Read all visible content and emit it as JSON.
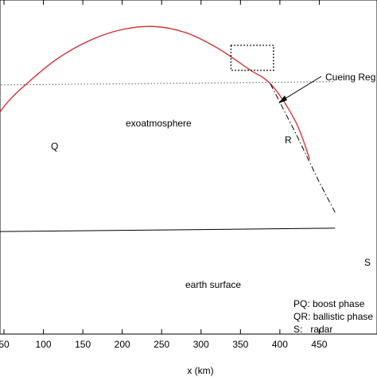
{
  "chart_data": {
    "type": "line",
    "xlabel": "x (km)",
    "ylabel": "",
    "title": "",
    "xlim": [
      -10,
      470
    ],
    "x_ticks": [
      50,
      100,
      150,
      200,
      250,
      300,
      350,
      400,
      450
    ],
    "grid": false,
    "series": [
      {
        "name": "",
        "style": "solid",
        "color": "#d62728",
        "x": [
          -5,
          20,
          50,
          84,
          120,
          160,
          200,
          240,
          280,
          320,
          360,
          390,
          420,
          438
        ],
        "y": [
          -0.65,
          -0.1,
          0.4,
          0.75,
          1.05,
          1.28,
          1.42,
          1.46,
          1.38,
          1.18,
          0.9,
          0.68,
          0.2,
          -0.3
        ]
      },
      {
        "name": "",
        "style": "dash-dot",
        "color": "#000000",
        "x": [
          388,
          420,
          450,
          470
        ],
        "y": [
          0.7,
          0.05,
          -0.6,
          -1.0
        ]
      },
      {
        "name": "",
        "style": "dotted",
        "color": "#000000",
        "x": [
          -10,
          470
        ],
        "y": [
          0.68,
          0.73
        ]
      },
      {
        "name": "",
        "style": "solid",
        "color": "#000000",
        "x": [
          -10,
          470
        ],
        "y": [
          -1.26,
          -1.21
        ]
      }
    ],
    "annotations": {
      "exoatmosphere": "exoatmosphere",
      "earth_surface": "earth surface",
      "Q": "Q",
      "R": "R",
      "S": "S",
      "cueing_region": "Cueing Reg"
    },
    "cueing_box": {
      "x": [
        338,
        392
      ],
      "y": [
        0.88,
        1.21
      ]
    },
    "legend": {
      "lines": [
        "PQ: boost phase",
        "QR: ballistic phase",
        "S:   radar"
      ],
      "placement": "bottom-right"
    }
  }
}
